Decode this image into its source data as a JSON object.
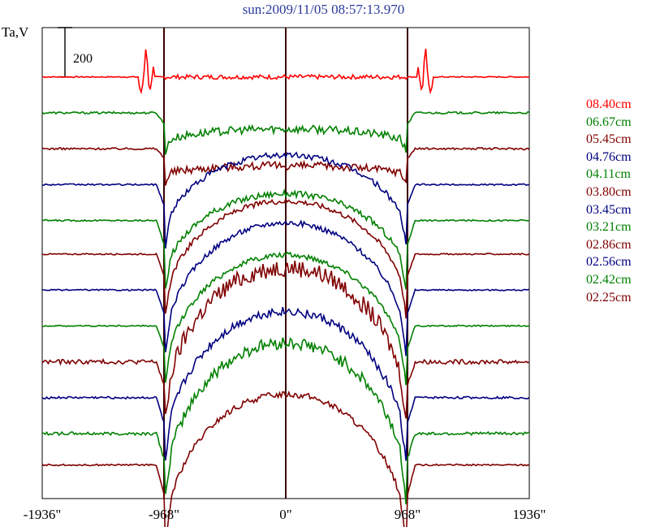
{
  "chart_data": {
    "type": "line",
    "title": "sun:2009/11/05 08:57:13.970",
    "ylabel": "Ta,V",
    "scale_bar_label": "200",
    "scale_bar_value": 200,
    "xlim": [
      -1936,
      1936
    ],
    "x_ticks": [
      {
        "value": -1936,
        "label": "-1936\""
      },
      {
        "value": -968,
        "label": "-968\""
      },
      {
        "value": 0,
        "label": "0\""
      },
      {
        "value": 968,
        "label": "968\""
      },
      {
        "value": 1936,
        "label": "1936\""
      }
    ],
    "vertical_lines": [
      -968,
      0,
      968
    ],
    "series": [
      {
        "name": "08.40cm",
        "color": "#ff0000",
        "baseline": 940,
        "disk_peak": 0,
        "limb_drop": 0,
        "noise": 10,
        "limb_spikes": 140
      },
      {
        "name": "06.67cm",
        "color": "#008000",
        "baseline": 860,
        "disk_peak": 20,
        "limb_drop": 70,
        "noise": 18,
        "limb_spikes": 0
      },
      {
        "name": "05.45cm",
        "color": "#800000",
        "baseline": 780,
        "disk_peak": 10,
        "limb_drop": 60,
        "noise": 18,
        "limb_spikes": 0
      },
      {
        "name": "04.76cm",
        "color": "#000080",
        "baseline": 700,
        "disk_peak": 170,
        "limb_drop": 130,
        "noise": 14,
        "limb_spikes": 0
      },
      {
        "name": "04.11cm",
        "color": "#008000",
        "baseline": 620,
        "disk_peak": 180,
        "limb_drop": 150,
        "noise": 14,
        "limb_spikes": 0
      },
      {
        "name": "03.80cm",
        "color": "#800000",
        "baseline": 545,
        "disk_peak": 230,
        "limb_drop": 140,
        "noise": 12,
        "limb_spikes": 0
      },
      {
        "name": "03.45cm",
        "color": "#000080",
        "baseline": 465,
        "disk_peak": 270,
        "limb_drop": 150,
        "noise": 12,
        "limb_spikes": 0
      },
      {
        "name": "03.21cm",
        "color": "#008000",
        "baseline": 385,
        "disk_peak": 270,
        "limb_drop": 140,
        "noise": 12,
        "limb_spikes": 0
      },
      {
        "name": "02.86cm",
        "color": "#800000",
        "baseline": 305,
        "disk_peak": 330,
        "limb_drop": 150,
        "noise": 40,
        "limb_spikes": 0
      },
      {
        "name": "02.56cm",
        "color": "#000080",
        "baseline": 225,
        "disk_peak": 320,
        "limb_drop": 160,
        "noise": 20,
        "limb_spikes": 0
      },
      {
        "name": "02.42cm",
        "color": "#008000",
        "baseline": 145,
        "disk_peak": 330,
        "limb_drop": 160,
        "noise": 28,
        "limb_spikes": 0
      },
      {
        "name": "02.25cm",
        "color": "#800000",
        "baseline": 75,
        "disk_peak": 310,
        "limb_drop": 190,
        "noise": 14,
        "limb_spikes": 0
      }
    ],
    "ylim": [
      0,
      1050
    ],
    "grid": false,
    "legend_position": "right"
  }
}
